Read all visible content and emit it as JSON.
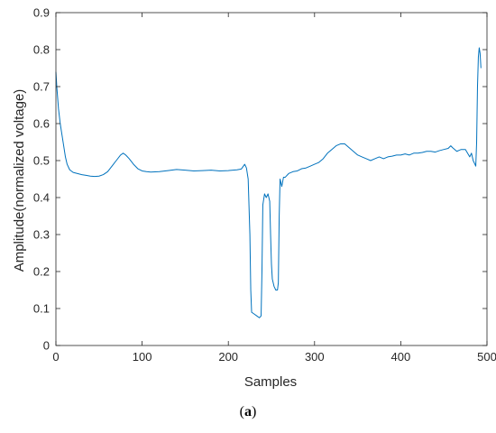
{
  "caption": {
    "open": "(",
    "letter": "a",
    "close": ")"
  },
  "chart_data": {
    "type": "line",
    "title": "",
    "xlabel": "Samples",
    "ylabel": "Amplitude(normalized voltage)",
    "xlim": [
      0,
      500
    ],
    "ylim": [
      0,
      0.9
    ],
    "xticks": [
      0,
      100,
      200,
      300,
      400,
      500
    ],
    "yticks": [
      0,
      0.1,
      0.2,
      0.3,
      0.4,
      0.5,
      0.6,
      0.7,
      0.8,
      0.9
    ],
    "grid": false,
    "legend": "none",
    "colors": {
      "line": "#0072BD",
      "axis": "#262626"
    },
    "series": [
      {
        "values": [
          [
            0,
            0.74
          ],
          [
            1,
            0.7
          ],
          [
            3,
            0.64
          ],
          [
            5,
            0.6
          ],
          [
            7,
            0.57
          ],
          [
            9,
            0.54
          ],
          [
            11,
            0.51
          ],
          [
            13,
            0.49
          ],
          [
            16,
            0.475
          ],
          [
            20,
            0.468
          ],
          [
            25,
            0.465
          ],
          [
            30,
            0.462
          ],
          [
            35,
            0.46
          ],
          [
            40,
            0.458
          ],
          [
            45,
            0.457
          ],
          [
            50,
            0.458
          ],
          [
            55,
            0.462
          ],
          [
            60,
            0.47
          ],
          [
            65,
            0.485
          ],
          [
            70,
            0.5
          ],
          [
            75,
            0.515
          ],
          [
            78,
            0.52
          ],
          [
            81,
            0.515
          ],
          [
            85,
            0.505
          ],
          [
            90,
            0.49
          ],
          [
            95,
            0.478
          ],
          [
            100,
            0.472
          ],
          [
            105,
            0.47
          ],
          [
            110,
            0.469
          ],
          [
            120,
            0.47
          ],
          [
            130,
            0.473
          ],
          [
            140,
            0.476
          ],
          [
            150,
            0.474
          ],
          [
            160,
            0.472
          ],
          [
            170,
            0.473
          ],
          [
            180,
            0.474
          ],
          [
            190,
            0.472
          ],
          [
            200,
            0.473
          ],
          [
            210,
            0.475
          ],
          [
            215,
            0.477
          ],
          [
            219,
            0.49
          ],
          [
            221,
            0.48
          ],
          [
            223,
            0.45
          ],
          [
            225,
            0.3
          ],
          [
            226,
            0.15
          ],
          [
            227,
            0.09
          ],
          [
            230,
            0.085
          ],
          [
            233,
            0.08
          ],
          [
            236,
            0.075
          ],
          [
            238,
            0.08
          ],
          [
            239,
            0.2
          ],
          [
            240,
            0.38
          ],
          [
            242,
            0.41
          ],
          [
            244,
            0.4
          ],
          [
            246,
            0.41
          ],
          [
            248,
            0.39
          ],
          [
            249,
            0.3
          ],
          [
            250,
            0.22
          ],
          [
            251,
            0.18
          ],
          [
            253,
            0.16
          ],
          [
            255,
            0.15
          ],
          [
            257,
            0.15
          ],
          [
            258,
            0.17
          ],
          [
            259,
            0.35
          ],
          [
            260,
            0.45
          ],
          [
            262,
            0.43
          ],
          [
            264,
            0.455
          ],
          [
            266,
            0.455
          ],
          [
            270,
            0.465
          ],
          [
            275,
            0.47
          ],
          [
            280,
            0.472
          ],
          [
            285,
            0.478
          ],
          [
            290,
            0.48
          ],
          [
            295,
            0.485
          ],
          [
            300,
            0.49
          ],
          [
            305,
            0.495
          ],
          [
            310,
            0.505
          ],
          [
            315,
            0.52
          ],
          [
            320,
            0.53
          ],
          [
            325,
            0.54
          ],
          [
            330,
            0.545
          ],
          [
            335,
            0.545
          ],
          [
            340,
            0.535
          ],
          [
            345,
            0.525
          ],
          [
            350,
            0.515
          ],
          [
            355,
            0.51
          ],
          [
            360,
            0.505
          ],
          [
            365,
            0.5
          ],
          [
            370,
            0.505
          ],
          [
            375,
            0.51
          ],
          [
            380,
            0.505
          ],
          [
            385,
            0.51
          ],
          [
            390,
            0.512
          ],
          [
            395,
            0.515
          ],
          [
            400,
            0.515
          ],
          [
            405,
            0.518
          ],
          [
            410,
            0.515
          ],
          [
            415,
            0.52
          ],
          [
            420,
            0.52
          ],
          [
            425,
            0.522
          ],
          [
            430,
            0.525
          ],
          [
            435,
            0.525
          ],
          [
            440,
            0.523
          ],
          [
            445,
            0.527
          ],
          [
            450,
            0.53
          ],
          [
            455,
            0.533
          ],
          [
            458,
            0.54
          ],
          [
            460,
            0.535
          ],
          [
            465,
            0.525
          ],
          [
            470,
            0.53
          ],
          [
            475,
            0.53
          ],
          [
            480,
            0.51
          ],
          [
            482,
            0.52
          ],
          [
            484,
            0.5
          ],
          [
            486,
            0.49
          ],
          [
            487,
            0.485
          ],
          [
            488,
            0.55
          ],
          [
            489,
            0.7
          ],
          [
            490,
            0.78
          ],
          [
            491,
            0.805
          ],
          [
            492,
            0.79
          ],
          [
            493,
            0.75
          ]
        ]
      }
    ]
  }
}
